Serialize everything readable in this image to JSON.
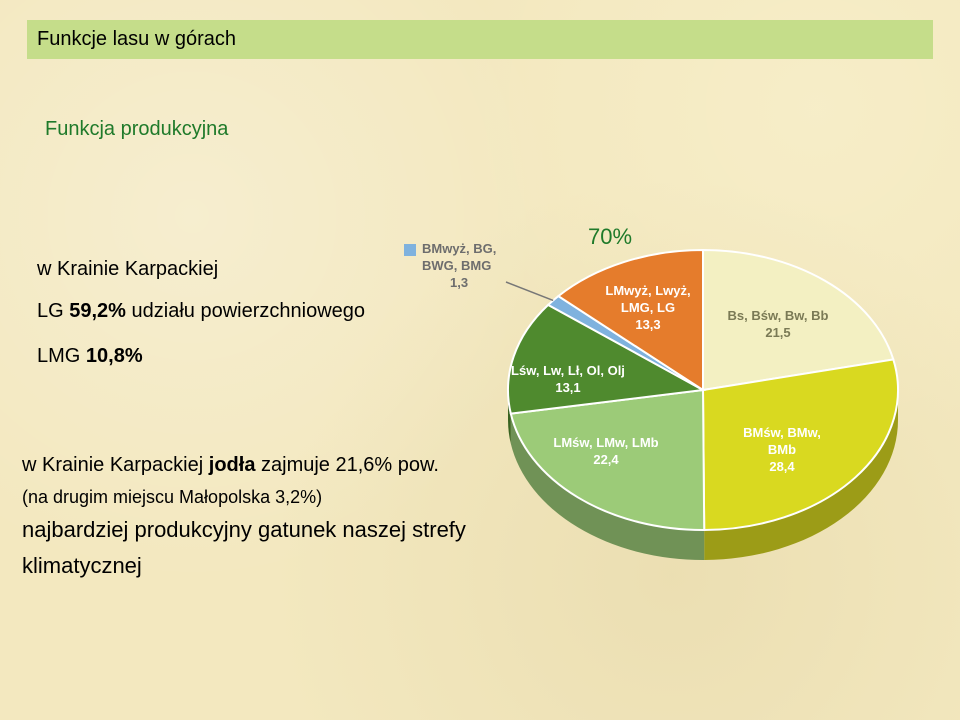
{
  "title": "Funkcje lasu w górach",
  "subtitle": "Funkcja produkcyjna",
  "lines": {
    "region": "w Krainie Karpackiej",
    "lg_prefix": "LG",
    "lg_value": "59,2%",
    "lg_suffix": "udziału powierzchniowego",
    "lmg_prefix": "LMG",
    "lmg_value": "10,8%",
    "fir_prefix": "w Krainie Karpackiej",
    "fir_word": "jodła",
    "fir_suffix": "zajmuje 21,6% pow.",
    "second": "(na drugim miejscu Małopolska 3,2%)",
    "prod1": "najbardziej produkcyjny gatunek naszej strefy",
    "prod2": "klimatycznej"
  },
  "chart_label": "70%",
  "chart_data": {
    "type": "pie",
    "slices": [
      {
        "name": "Bs, Bśw, Bw, Bb",
        "value": 21.5,
        "value_label": "21,5",
        "color": "#f3f0c2"
      },
      {
        "name": "BMśw, BMw, BMb",
        "value": 28.4,
        "value_label": "28,4",
        "color": "#d9d920"
      },
      {
        "name": "LMśw, LMw, LMb",
        "value": 22.4,
        "value_label": "22,4",
        "color": "#9ccb78"
      },
      {
        "name": "Lśw, Lw, Lł, Ol, Olj",
        "value": 13.1,
        "value_label": "13,1",
        "color": "#4f8a2e"
      },
      {
        "name": "BMwyż, BG, BWG, BMG",
        "value": 1.3,
        "value_label": "1,3",
        "color": "#7fb2de"
      },
      {
        "name": "LMwyż, Lwyż, LMG, LG",
        "value": 13.3,
        "value_label": "13,3",
        "color": "#e57c2c"
      }
    ]
  }
}
